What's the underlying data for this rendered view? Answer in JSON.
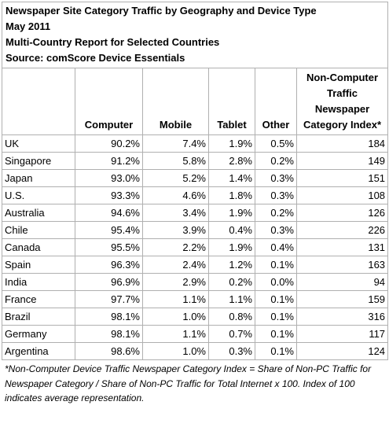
{
  "chart_data": {
    "type": "table",
    "title_lines": [
      "Newspaper Site Category Traffic by Geography and Device Type",
      "May 2011",
      "Multi-Country Report for Selected Countries",
      "Source: comScore Device Essentials"
    ],
    "columns": [
      "",
      "Computer",
      "Mobile",
      "Tablet",
      "Other",
      "Non-Computer Traffic Newspaper Category Index*"
    ],
    "rows": [
      [
        "UK",
        "90.2%",
        "7.4%",
        "1.9%",
        "0.5%",
        "184"
      ],
      [
        "Singapore",
        "91.2%",
        "5.8%",
        "2.8%",
        "0.2%",
        "149"
      ],
      [
        "Japan",
        "93.0%",
        "5.2%",
        "1.4%",
        "0.3%",
        "151"
      ],
      [
        "U.S.",
        "93.3%",
        "4.6%",
        "1.8%",
        "0.3%",
        "108"
      ],
      [
        "Australia",
        "94.6%",
        "3.4%",
        "1.9%",
        "0.2%",
        "126"
      ],
      [
        "Chile",
        "95.4%",
        "3.9%",
        "0.4%",
        "0.3%",
        "226"
      ],
      [
        "Canada",
        "95.5%",
        "2.2%",
        "1.9%",
        "0.4%",
        "131"
      ],
      [
        "Spain",
        "96.3%",
        "2.4%",
        "1.2%",
        "0.1%",
        "163"
      ],
      [
        "India",
        "96.9%",
        "2.9%",
        "0.2%",
        "0.0%",
        "94"
      ],
      [
        "France",
        "97.7%",
        "1.1%",
        "1.1%",
        "0.1%",
        "159"
      ],
      [
        "Brazil",
        "98.1%",
        "1.0%",
        "0.8%",
        "0.1%",
        "316"
      ],
      [
        "Germany",
        "98.1%",
        "1.1%",
        "0.7%",
        "0.1%",
        "117"
      ],
      [
        "Argentina",
        "98.6%",
        "1.0%",
        "0.3%",
        "0.1%",
        "124"
      ]
    ],
    "footnote": "*Non-Computer Device Traffic Newspaper Category Index = Share of Non-PC Traffic for Newspaper Category / Share of Non-PC Traffic for Total Internet x 100. Index of 100 indicates average representation."
  },
  "colors": {
    "grid": "#b0b0b0",
    "text": "#000000",
    "background": "#ffffff"
  }
}
